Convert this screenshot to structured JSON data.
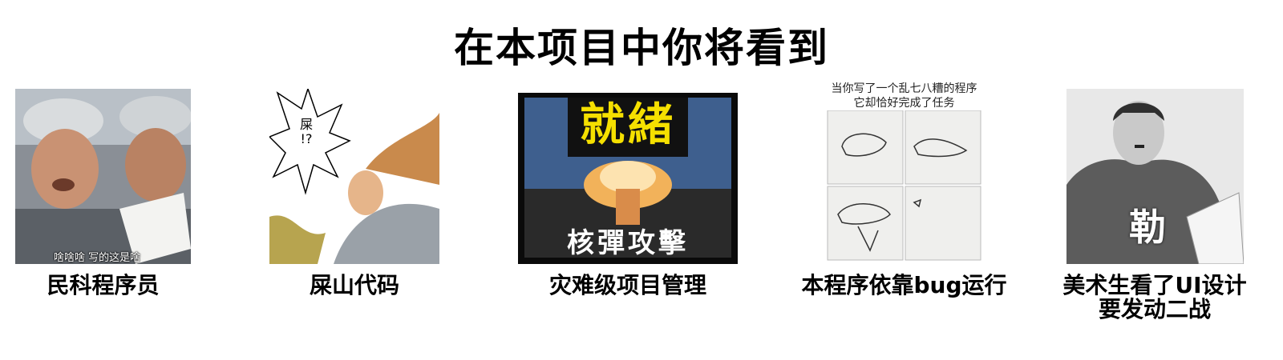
{
  "title": "在本项目中你将看到",
  "items": [
    {
      "caption_lines": [
        "民科程序员"
      ],
      "image": {
        "description_icon": "two-workers-reading-paper-image",
        "subtitle": "啥啥啥 写的这是啥"
      }
    },
    {
      "caption_lines": [
        "屎山代码"
      ],
      "image": {
        "description_icon": "manga-warrior-shouting-image",
        "speech_bubble": "屎\n!?"
      }
    },
    {
      "caption_lines": [
        "灾难级项目管理"
      ],
      "image": {
        "description_icon": "pixel-nuclear-explosion-image",
        "top_text": "就緒",
        "bottom_text": "核彈攻擊"
      }
    },
    {
      "caption_lines": [
        "本程序依靠bug运行"
      ],
      "image": {
        "description_icon": "bird-sketch-comic-image",
        "header_lines": [
          "当你写了一个乱七八糟的程序",
          "它却恰好完成了任务"
        ]
      }
    },
    {
      "caption_lines": [
        "美术生看了UI设计",
        "要发动二战"
      ],
      "image": {
        "description_icon": "man-reading-newspaper-image",
        "overlay_text": "勒"
      }
    }
  ]
}
